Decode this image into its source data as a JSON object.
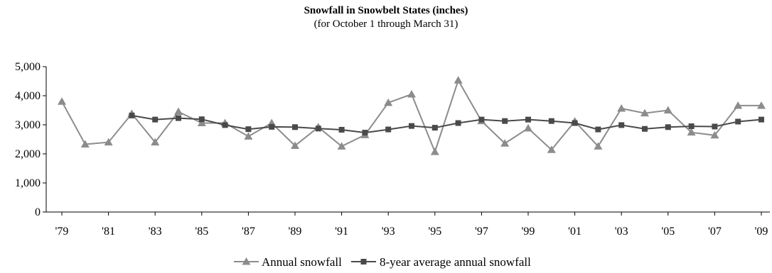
{
  "chart_data": {
    "type": "line",
    "title": "Snowfall in Snowbelt States (inches)",
    "subtitle": "(for October 1 through March 31)",
    "xlabel": "",
    "ylabel": "",
    "ylim": [
      0,
      5000
    ],
    "y_ticks": [
      "0",
      "1,000",
      "2,000",
      "3,000",
      "4,000",
      "5,000"
    ],
    "y_tick_values": [
      0,
      1000,
      2000,
      3000,
      4000,
      5000
    ],
    "x": [
      1979,
      1980,
      1981,
      1982,
      1983,
      1984,
      1985,
      1986,
      1987,
      1988,
      1989,
      1990,
      1991,
      1992,
      1993,
      1994,
      1995,
      1996,
      1997,
      1998,
      1999,
      2000,
      2001,
      2002,
      2003,
      2004,
      2005,
      2006,
      2007,
      2008,
      2009
    ],
    "x_ticks": [
      "'79",
      "'81",
      "'83",
      "'85",
      "'87",
      "'89",
      "'91",
      "'93",
      "'95",
      "'97",
      "'99",
      "'01",
      "'03",
      "'05",
      "'07",
      "'09"
    ],
    "x_tick_values": [
      1979,
      1981,
      1983,
      1985,
      1987,
      1989,
      1991,
      1993,
      1995,
      1997,
      1999,
      2001,
      2003,
      2005,
      2007,
      2009
    ],
    "grid": false,
    "legend_position": "bottom",
    "series": [
      {
        "name": "Annual snowfall",
        "color": "#8c8c8c",
        "marker": "triangle",
        "x": [
          1979,
          1980,
          1981,
          1982,
          1983,
          1984,
          1985,
          1986,
          1987,
          1988,
          1989,
          1990,
          1991,
          1992,
          1993,
          1994,
          1995,
          1996,
          1997,
          1998,
          1999,
          2000,
          2001,
          2002,
          2003,
          2004,
          2005,
          2006,
          2007,
          2008,
          2009
        ],
        "values": [
          3800,
          2330,
          2400,
          3380,
          2400,
          3450,
          3060,
          3060,
          2600,
          3060,
          2280,
          2920,
          2260,
          2650,
          3760,
          4050,
          2070,
          4530,
          3130,
          2360,
          2880,
          2140,
          3120,
          2260,
          3560,
          3400,
          3500,
          2740,
          2640,
          3660,
          3660
        ]
      },
      {
        "name": "8-year average annual snowfall",
        "color": "#4a4a4a",
        "marker": "square",
        "x": [
          1982,
          1983,
          1984,
          1985,
          1986,
          1987,
          1988,
          1989,
          1990,
          1991,
          1992,
          1993,
          1994,
          1995,
          1996,
          1997,
          1998,
          1999,
          2000,
          2001,
          2002,
          2003,
          2004,
          2005,
          2006,
          2007,
          2008,
          2009
        ],
        "values": [
          3320,
          3180,
          3230,
          3190,
          2990,
          2850,
          2930,
          2920,
          2870,
          2830,
          2730,
          2840,
          2960,
          2900,
          3060,
          3180,
          3130,
          3180,
          3130,
          3060,
          2840,
          2990,
          2860,
          2920,
          2950,
          2940,
          3110,
          3180
        ]
      }
    ]
  }
}
